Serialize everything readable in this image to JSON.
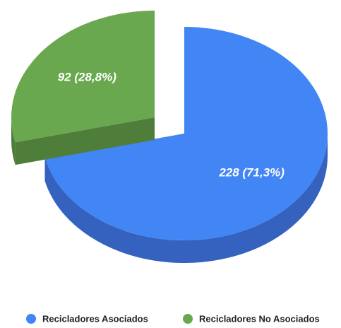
{
  "chart_data": {
    "type": "pie",
    "categories": [
      "Recicladores Asociados",
      "Recicladores No Asociados"
    ],
    "values": [
      228,
      92
    ],
    "value_labels": [
      "228 (71,3%)",
      "92 (28,8%)"
    ],
    "colors": [
      "#4285f4",
      "#6aa84f"
    ],
    "side_colors": [
      "#3462be",
      "#4f7e3b"
    ],
    "legend": "bottom"
  }
}
